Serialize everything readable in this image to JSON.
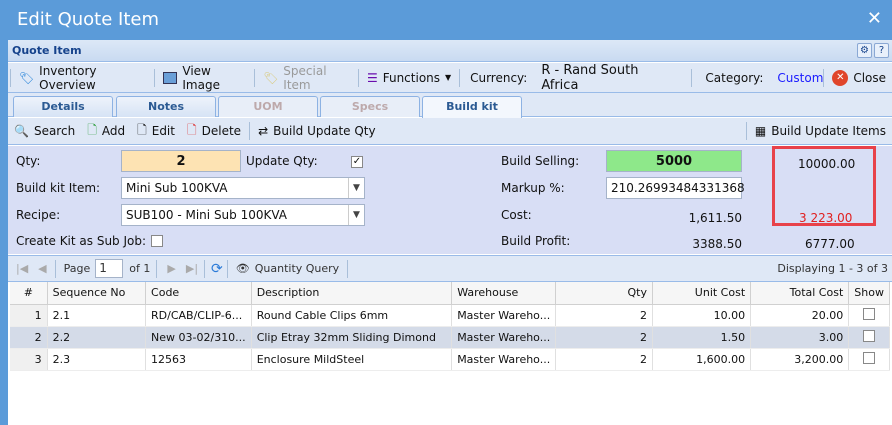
{
  "window": {
    "title": "Edit Quote Item"
  },
  "panel": {
    "title": "Quote Item"
  },
  "toolbar": {
    "inventory_overview": "Inventory Overview",
    "view_image": "View Image",
    "special_item": "Special Item",
    "functions": "Functions",
    "currency_label": "Currency:",
    "currency_value": "R - Rand South Africa",
    "category_label": "Category:",
    "category_value": "Custom",
    "close": "Close"
  },
  "tabs": [
    {
      "label": "Details"
    },
    {
      "label": "Notes"
    },
    {
      "label": "UOM"
    },
    {
      "label": "Specs"
    },
    {
      "label": "Build kit"
    }
  ],
  "actions": {
    "search": "Search",
    "add": "Add",
    "edit": "Edit",
    "delete": "Delete",
    "build_update_qty": "Build Update Qty",
    "build_update_items": "Build Update Items"
  },
  "form": {
    "qty_label": "Qty:",
    "qty": "2",
    "update_qty_label": "Update Qty:",
    "update_qty_checked": true,
    "build_kit_item_label": "Build kit Item:",
    "build_kit_item": "Mini Sub 100KVA",
    "recipe_label": "Recipe:",
    "recipe": "SUB100 - Mini Sub 100KVA",
    "create_kit_label": "Create Kit as Sub Job:",
    "create_kit_checked": false,
    "build_selling_label": "Build Selling:",
    "build_selling": "5000",
    "markup_label": "Markup %:",
    "markup": "210.26993484331368",
    "cost_label": "Cost:",
    "cost": "1,611.50",
    "build_profit_label": "Build Profit:",
    "build_profit": "3388.50",
    "highlight_total": "10000.00",
    "highlight_cost": "3 223.00",
    "highlight_profit": "6777.00"
  },
  "pager": {
    "page_label": "Page",
    "page": "1",
    "of": "of 1",
    "quantity_query": "Quantity Query",
    "displaying": "Displaying 1 - 3 of 3"
  },
  "grid": {
    "columns": [
      "#",
      "Sequence No",
      "Code",
      "Description",
      "Warehouse",
      "Qty",
      "Unit Cost",
      "Total Cost",
      "Show"
    ],
    "rows": [
      {
        "n": "1",
        "seq": "2.1",
        "code": "RD/CAB/CLIP-6...",
        "desc": "Round Cable Clips 6mm",
        "wh": "Master Wareho...",
        "qty": "2",
        "unit": "10.00",
        "total": "20.00"
      },
      {
        "n": "2",
        "seq": "2.2",
        "code": "New 03-02/310...",
        "desc": "Clip Etray 32mm Sliding Dimond",
        "wh": "Master Wareho...",
        "qty": "2",
        "unit": "1.50",
        "total": "3.00"
      },
      {
        "n": "3",
        "seq": "2.3",
        "code": "12563",
        "desc": "Enclosure MildSteel",
        "wh": "Master Wareho...",
        "qty": "2",
        "unit": "1,600.00",
        "total": "3,200.00"
      }
    ]
  }
}
